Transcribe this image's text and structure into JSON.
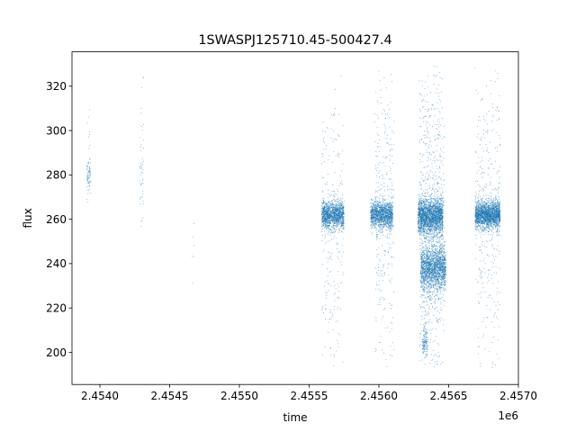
{
  "chart_data": {
    "type": "scatter",
    "title": "1SWASPJ125710.45-500427.4",
    "xlabel": "time",
    "ylabel": "flux",
    "x_offset_label": "1e6",
    "xlim": [
      2.4538,
      2.457
    ],
    "ylim": [
      185.5,
      335.5
    ],
    "xticks": [
      2.454,
      2.4545,
      2.455,
      2.4555,
      2.456,
      2.4565,
      2.457
    ],
    "xtick_labels": [
      "2.4540",
      "2.4545",
      "2.4550",
      "2.4555",
      "2.4560",
      "2.4565",
      "2.4570"
    ],
    "yticks": [
      200,
      220,
      240,
      260,
      280,
      300,
      320
    ],
    "ytick_labels": [
      "200",
      "220",
      "240",
      "260",
      "280",
      "300",
      "320"
    ],
    "grid": false,
    "point_color": "#1f77b4",
    "clusters": [
      {
        "x_center": 2.45392,
        "x_spread": 1.5e-05,
        "y_center": 280,
        "y_spread": 4,
        "n": 70
      },
      {
        "x_center": 2.45392,
        "x_spread": 1.5e-05,
        "y_center": 290,
        "y_spread": 12,
        "n": 12
      },
      {
        "x_center": 2.4543,
        "x_spread": 1.5e-05,
        "y_center": 280,
        "y_spread": 10,
        "n": 40
      },
      {
        "x_center": 2.4543,
        "x_spread": 1.5e-05,
        "y_center": 305,
        "y_spread": 8,
        "n": 10
      },
      {
        "x_center": 2.45467,
        "x_spread": 1e-05,
        "y_center": 245,
        "y_spread": 10,
        "n": 6
      },
      {
        "x_center": 2.45567,
        "x_spread": 8e-05,
        "y_center": 262,
        "y_spread": 3,
        "n": 1400
      },
      {
        "x_center": 2.45567,
        "x_spread": 8e-05,
        "y_center": 255,
        "y_spread": 35,
        "n": 260
      },
      {
        "x_center": 2.45602,
        "x_spread": 8e-05,
        "y_center": 262,
        "y_spread": 3,
        "n": 1400
      },
      {
        "x_center": 2.45604,
        "x_spread": 7e-05,
        "y_center": 262,
        "y_spread": 35,
        "n": 320
      },
      {
        "x_center": 2.45637,
        "x_spread": 9e-05,
        "y_center": 261,
        "y_spread": 4,
        "n": 2200
      },
      {
        "x_center": 2.45639,
        "x_spread": 9e-05,
        "y_center": 238,
        "y_spread": 5,
        "n": 1800
      },
      {
        "x_center": 2.45638,
        "x_spread": 9e-05,
        "y_center": 255,
        "y_spread": 40,
        "n": 800
      },
      {
        "x_center": 2.45633,
        "x_spread": 2e-05,
        "y_center": 205,
        "y_spread": 4,
        "n": 140
      },
      {
        "x_center": 2.45678,
        "x_spread": 9e-05,
        "y_center": 262,
        "y_spread": 3,
        "n": 2000
      },
      {
        "x_center": 2.45678,
        "x_spread": 9e-05,
        "y_center": 260,
        "y_spread": 35,
        "n": 360
      }
    ]
  }
}
